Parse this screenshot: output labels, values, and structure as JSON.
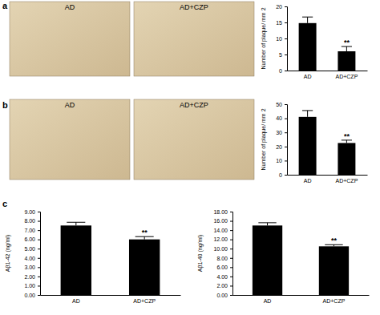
{
  "panel_labels": [
    "a",
    "b",
    "c"
  ],
  "image_labels": [
    "AD",
    "AD+CZP"
  ],
  "chart_data": [
    {
      "type": "bar",
      "categories": [
        "AD",
        "AD+CZP"
      ],
      "values": [
        14.8,
        6.0
      ],
      "errors": [
        1.9,
        1.5
      ],
      "color": "#000000",
      "y_label": "Number of plaque/ mm 2",
      "ylim": [
        0,
        20
      ],
      "yticks": [
        0,
        5,
        10,
        15,
        20
      ],
      "annotations": [
        {
          "text": "**",
          "x": "AD+CZP"
        }
      ]
    },
    {
      "type": "bar",
      "categories": [
        "AD",
        "AD+CZP"
      ],
      "values": [
        41,
        22.5
      ],
      "errors": [
        4.5,
        2.0
      ],
      "color": "#000000",
      "y_label": "Number of plaque/ mm 2",
      "ylim": [
        0,
        50
      ],
      "yticks": [
        0,
        10,
        20,
        30,
        40,
        50
      ],
      "annotations": [
        {
          "text": "**",
          "x": "AD+CZP"
        }
      ]
    },
    {
      "type": "bar",
      "categories": [
        "AD",
        "AD+CZP"
      ],
      "values": [
        7.5,
        6.0
      ],
      "errors": [
        0.35,
        0.3
      ],
      "color": "#000000",
      "y_label": "Aβ1-42 (ng/ml)",
      "ylim": [
        0,
        9
      ],
      "yticks": [
        {
          "value": 0,
          "label": "0.00"
        },
        {
          "value": 1,
          "label": "1.00"
        },
        {
          "value": 2,
          "label": "2.00"
        },
        {
          "value": 3,
          "label": "3.00"
        },
        {
          "value": 4,
          "label": "4.00"
        },
        {
          "value": 5,
          "label": "5.00"
        },
        {
          "value": 6,
          "label": "6.00"
        },
        {
          "value": 7,
          "label": "7.00"
        },
        {
          "value": 8,
          "label": "8.00"
        },
        {
          "value": 9,
          "label": "9.00"
        }
      ],
      "annotations": [
        {
          "text": "**",
          "x": "AD+CZP"
        }
      ]
    },
    {
      "type": "bar",
      "categories": [
        "AD",
        "AD+CZP"
      ],
      "values": [
        15.0,
        10.5
      ],
      "errors": [
        0.6,
        0.35
      ],
      "color": "#000000",
      "y_label": "Aβ1-40 (ng/ml)",
      "ylim": [
        0,
        18
      ],
      "yticks": [
        {
          "value": 0,
          "label": "0.00"
        },
        {
          "value": 2,
          "label": "2.00"
        },
        {
          "value": 4,
          "label": "4.00"
        },
        {
          "value": 6,
          "label": "6.00"
        },
        {
          "value": 8,
          "label": "8.00"
        },
        {
          "value": 10,
          "label": "10.00"
        },
        {
          "value": 12,
          "label": "12.00"
        },
        {
          "value": 14,
          "label": "14.00"
        },
        {
          "value": 16,
          "label": "16.00"
        },
        {
          "value": 18,
          "label": "18.00"
        }
      ],
      "annotations": [
        {
          "text": "**",
          "x": "AD+CZP"
        }
      ]
    }
  ]
}
